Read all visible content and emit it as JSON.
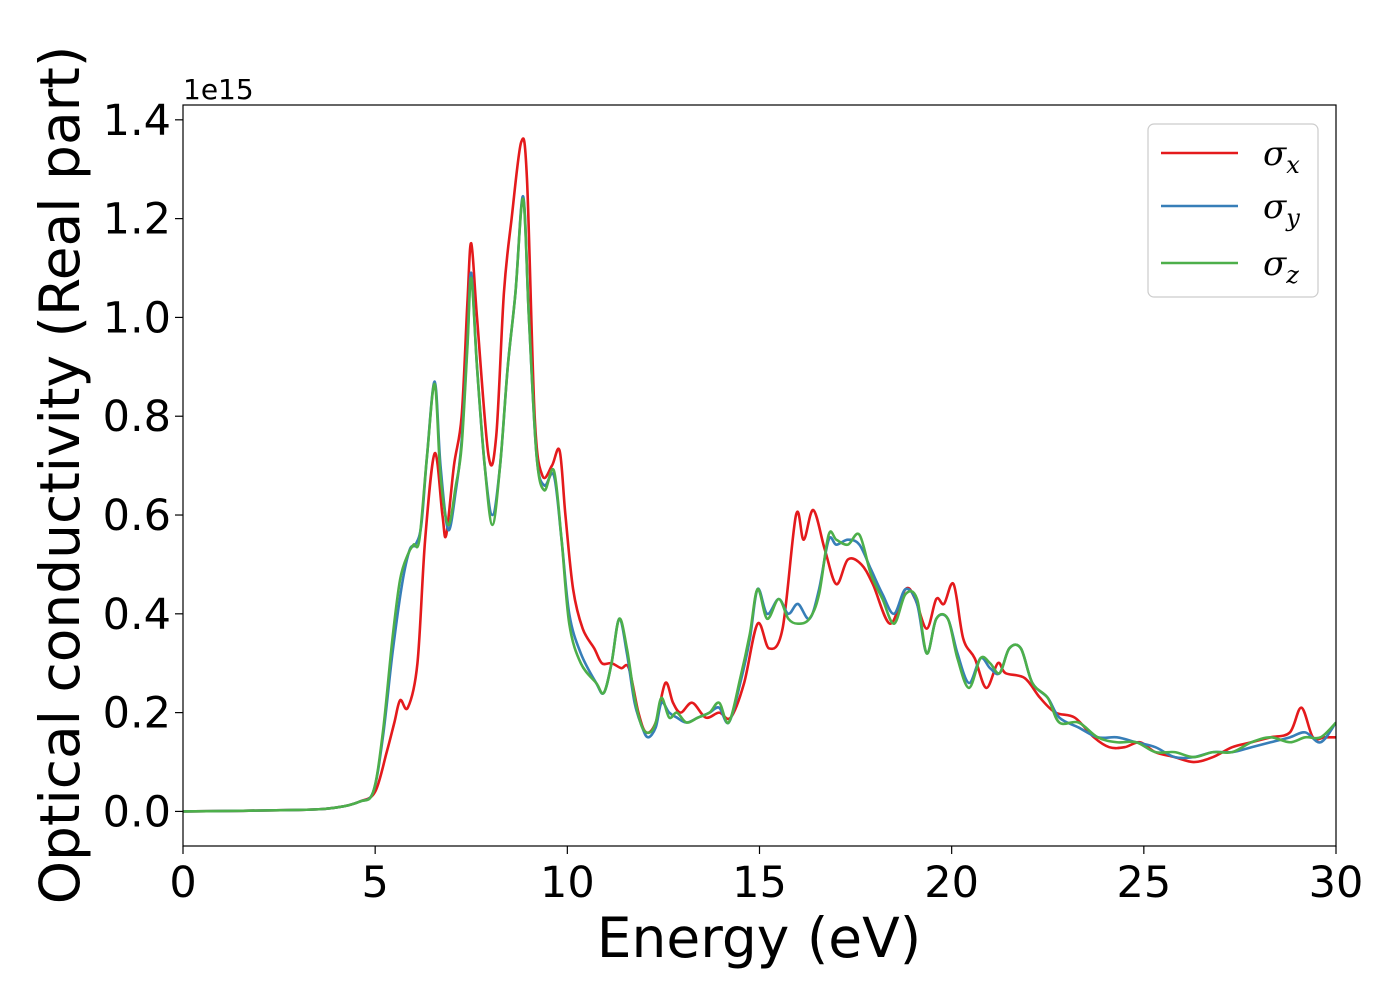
{
  "chart_data": {
    "type": "line",
    "title": "",
    "xlabel": "Energy (eV)",
    "ylabel": "Optical conductivity (Real part)",
    "y_offset_text": "1e15",
    "y_scale": 1000000000000000.0,
    "xlim": [
      0,
      30
    ],
    "ylim": [
      -0.07,
      1.43
    ],
    "xticks": [
      0,
      5,
      10,
      15,
      20,
      25,
      30
    ],
    "xtick_labels": [
      "0",
      "5",
      "10",
      "15",
      "20",
      "25",
      "30"
    ],
    "yticks": [
      0.0,
      0.2,
      0.4,
      0.6,
      0.8,
      1.0,
      1.2,
      1.4
    ],
    "ytick_labels": [
      "0.0",
      "0.2",
      "0.4",
      "0.6",
      "0.8",
      "1.0",
      "1.2",
      "1.4"
    ],
    "grid": false,
    "legend_position": "top-right",
    "series": [
      {
        "name": "σx",
        "symbol": "σ",
        "subscript": "x",
        "color": "#e41a1c",
        "points": [
          [
            0,
            0
          ],
          [
            3,
            0.003
          ],
          [
            4,
            0.008
          ],
          [
            4.6,
            0.02
          ],
          [
            5,
            0.04
          ],
          [
            5.3,
            0.12
          ],
          [
            5.5,
            0.18
          ],
          [
            5.65,
            0.225
          ],
          [
            5.85,
            0.21
          ],
          [
            6.1,
            0.3
          ],
          [
            6.3,
            0.55
          ],
          [
            6.55,
            0.725
          ],
          [
            6.75,
            0.6
          ],
          [
            6.85,
            0.56
          ],
          [
            7.05,
            0.7
          ],
          [
            7.25,
            0.8
          ],
          [
            7.4,
            1.03
          ],
          [
            7.5,
            1.15
          ],
          [
            7.65,
            1.0
          ],
          [
            7.95,
            0.72
          ],
          [
            8.15,
            0.76
          ],
          [
            8.35,
            1.05
          ],
          [
            8.55,
            1.2
          ],
          [
            8.8,
            1.355
          ],
          [
            8.95,
            1.28
          ],
          [
            9.15,
            0.8
          ],
          [
            9.35,
            0.68
          ],
          [
            9.6,
            0.7
          ],
          [
            9.8,
            0.73
          ],
          [
            9.95,
            0.6
          ],
          [
            10.15,
            0.45
          ],
          [
            10.4,
            0.37
          ],
          [
            10.7,
            0.33
          ],
          [
            10.9,
            0.3
          ],
          [
            11.15,
            0.3
          ],
          [
            11.4,
            0.29
          ],
          [
            11.6,
            0.29
          ],
          [
            11.85,
            0.2
          ],
          [
            12.05,
            0.16
          ],
          [
            12.3,
            0.18
          ],
          [
            12.55,
            0.26
          ],
          [
            12.75,
            0.22
          ],
          [
            12.95,
            0.2
          ],
          [
            13.25,
            0.22
          ],
          [
            13.6,
            0.19
          ],
          [
            13.95,
            0.2
          ],
          [
            14.25,
            0.19
          ],
          [
            14.6,
            0.26
          ],
          [
            14.95,
            0.38
          ],
          [
            15.25,
            0.33
          ],
          [
            15.6,
            0.37
          ],
          [
            15.95,
            0.6
          ],
          [
            16.15,
            0.55
          ],
          [
            16.4,
            0.61
          ],
          [
            16.7,
            0.53
          ],
          [
            17.0,
            0.46
          ],
          [
            17.3,
            0.51
          ],
          [
            17.65,
            0.5
          ],
          [
            17.95,
            0.46
          ],
          [
            18.4,
            0.38
          ],
          [
            18.8,
            0.45
          ],
          [
            19.05,
            0.43
          ],
          [
            19.35,
            0.37
          ],
          [
            19.6,
            0.43
          ],
          [
            19.8,
            0.42
          ],
          [
            20.05,
            0.46
          ],
          [
            20.3,
            0.35
          ],
          [
            20.6,
            0.31
          ],
          [
            20.9,
            0.25
          ],
          [
            21.2,
            0.3
          ],
          [
            21.4,
            0.28
          ],
          [
            21.9,
            0.27
          ],
          [
            22.3,
            0.23
          ],
          [
            22.7,
            0.2
          ],
          [
            23.2,
            0.19
          ],
          [
            23.7,
            0.15
          ],
          [
            24.1,
            0.13
          ],
          [
            24.5,
            0.13
          ],
          [
            24.9,
            0.14
          ],
          [
            25.3,
            0.12
          ],
          [
            25.8,
            0.11
          ],
          [
            26.3,
            0.1
          ],
          [
            26.8,
            0.11
          ],
          [
            27.3,
            0.13
          ],
          [
            27.8,
            0.14
          ],
          [
            28.3,
            0.15
          ],
          [
            28.8,
            0.16
          ],
          [
            29.1,
            0.21
          ],
          [
            29.4,
            0.15
          ],
          [
            29.7,
            0.15
          ],
          [
            30,
            0.15
          ]
        ]
      },
      {
        "name": "σy",
        "symbol": "σ",
        "subscript": "y",
        "color": "#377eb8",
        "points": [
          [
            0,
            0
          ],
          [
            3,
            0.003
          ],
          [
            4,
            0.008
          ],
          [
            4.6,
            0.02
          ],
          [
            4.95,
            0.04
          ],
          [
            5.2,
            0.15
          ],
          [
            5.45,
            0.32
          ],
          [
            5.7,
            0.46
          ],
          [
            5.9,
            0.53
          ],
          [
            6.05,
            0.54
          ],
          [
            6.2,
            0.58
          ],
          [
            6.35,
            0.72
          ],
          [
            6.55,
            0.87
          ],
          [
            6.7,
            0.7
          ],
          [
            6.9,
            0.57
          ],
          [
            7.1,
            0.65
          ],
          [
            7.25,
            0.75
          ],
          [
            7.4,
            0.95
          ],
          [
            7.5,
            1.09
          ],
          [
            7.65,
            0.9
          ],
          [
            7.85,
            0.7
          ],
          [
            8.05,
            0.6
          ],
          [
            8.25,
            0.7
          ],
          [
            8.45,
            0.9
          ],
          [
            8.65,
            1.05
          ],
          [
            8.85,
            1.245
          ],
          [
            9.0,
            1.0
          ],
          [
            9.2,
            0.72
          ],
          [
            9.4,
            0.66
          ],
          [
            9.65,
            0.68
          ],
          [
            9.85,
            0.55
          ],
          [
            10.05,
            0.4
          ],
          [
            10.35,
            0.32
          ],
          [
            10.75,
            0.26
          ],
          [
            10.95,
            0.24
          ],
          [
            11.15,
            0.3
          ],
          [
            11.35,
            0.39
          ],
          [
            11.55,
            0.32
          ],
          [
            11.75,
            0.22
          ],
          [
            11.95,
            0.17
          ],
          [
            12.1,
            0.15
          ],
          [
            12.3,
            0.17
          ],
          [
            12.45,
            0.22
          ],
          [
            12.65,
            0.2
          ],
          [
            12.85,
            0.19
          ],
          [
            13.1,
            0.18
          ],
          [
            13.4,
            0.19
          ],
          [
            13.7,
            0.2
          ],
          [
            13.95,
            0.21
          ],
          [
            14.2,
            0.18
          ],
          [
            14.5,
            0.26
          ],
          [
            14.75,
            0.35
          ],
          [
            14.95,
            0.45
          ],
          [
            15.2,
            0.4
          ],
          [
            15.5,
            0.43
          ],
          [
            15.75,
            0.4
          ],
          [
            16.0,
            0.42
          ],
          [
            16.3,
            0.39
          ],
          [
            16.55,
            0.45
          ],
          [
            16.8,
            0.55
          ],
          [
            17.0,
            0.54
          ],
          [
            17.3,
            0.55
          ],
          [
            17.6,
            0.54
          ],
          [
            17.9,
            0.49
          ],
          [
            18.2,
            0.44
          ],
          [
            18.5,
            0.4
          ],
          [
            18.8,
            0.45
          ],
          [
            19.1,
            0.42
          ],
          [
            19.35,
            0.32
          ],
          [
            19.6,
            0.39
          ],
          [
            19.9,
            0.39
          ],
          [
            20.15,
            0.32
          ],
          [
            20.45,
            0.26
          ],
          [
            20.75,
            0.31
          ],
          [
            21.0,
            0.29
          ],
          [
            21.25,
            0.28
          ],
          [
            21.5,
            0.33
          ],
          [
            21.8,
            0.33
          ],
          [
            22.1,
            0.26
          ],
          [
            22.5,
            0.23
          ],
          [
            22.8,
            0.19
          ],
          [
            23.3,
            0.17
          ],
          [
            23.8,
            0.15
          ],
          [
            24.3,
            0.15
          ],
          [
            24.8,
            0.14
          ],
          [
            25.3,
            0.13
          ],
          [
            25.8,
            0.11
          ],
          [
            26.3,
            0.11
          ],
          [
            26.8,
            0.12
          ],
          [
            27.3,
            0.12
          ],
          [
            27.8,
            0.13
          ],
          [
            28.3,
            0.14
          ],
          [
            28.8,
            0.15
          ],
          [
            29.2,
            0.16
          ],
          [
            29.6,
            0.14
          ],
          [
            30,
            0.18
          ]
        ]
      },
      {
        "name": "σz",
        "symbol": "σ",
        "subscript": "z",
        "color": "#4daf4a",
        "points": [
          [
            0,
            0
          ],
          [
            3,
            0.003
          ],
          [
            4,
            0.008
          ],
          [
            4.6,
            0.02
          ],
          [
            4.95,
            0.04
          ],
          [
            5.2,
            0.16
          ],
          [
            5.45,
            0.35
          ],
          [
            5.65,
            0.47
          ],
          [
            5.85,
            0.52
          ],
          [
            6.0,
            0.54
          ],
          [
            6.15,
            0.55
          ],
          [
            6.35,
            0.72
          ],
          [
            6.55,
            0.865
          ],
          [
            6.7,
            0.68
          ],
          [
            6.9,
            0.58
          ],
          [
            7.1,
            0.66
          ],
          [
            7.25,
            0.74
          ],
          [
            7.4,
            0.94
          ],
          [
            7.5,
            1.08
          ],
          [
            7.65,
            0.9
          ],
          [
            7.85,
            0.7
          ],
          [
            8.05,
            0.58
          ],
          [
            8.25,
            0.7
          ],
          [
            8.45,
            0.9
          ],
          [
            8.65,
            1.05
          ],
          [
            8.85,
            1.24
          ],
          [
            9.0,
            1.0
          ],
          [
            9.2,
            0.72
          ],
          [
            9.4,
            0.65
          ],
          [
            9.65,
            0.69
          ],
          [
            9.85,
            0.55
          ],
          [
            10.05,
            0.38
          ],
          [
            10.35,
            0.3
          ],
          [
            10.75,
            0.26
          ],
          [
            10.95,
            0.24
          ],
          [
            11.15,
            0.3
          ],
          [
            11.35,
            0.39
          ],
          [
            11.55,
            0.33
          ],
          [
            11.75,
            0.23
          ],
          [
            11.95,
            0.17
          ],
          [
            12.15,
            0.16
          ],
          [
            12.3,
            0.18
          ],
          [
            12.45,
            0.23
          ],
          [
            12.65,
            0.19
          ],
          [
            12.85,
            0.2
          ],
          [
            13.1,
            0.18
          ],
          [
            13.4,
            0.19
          ],
          [
            13.7,
            0.2
          ],
          [
            13.95,
            0.22
          ],
          [
            14.2,
            0.18
          ],
          [
            14.5,
            0.27
          ],
          [
            14.75,
            0.36
          ],
          [
            14.95,
            0.45
          ],
          [
            15.2,
            0.39
          ],
          [
            15.5,
            0.43
          ],
          [
            15.75,
            0.39
          ],
          [
            16.0,
            0.38
          ],
          [
            16.3,
            0.39
          ],
          [
            16.55,
            0.44
          ],
          [
            16.8,
            0.56
          ],
          [
            17.0,
            0.55
          ],
          [
            17.3,
            0.54
          ],
          [
            17.6,
            0.56
          ],
          [
            17.9,
            0.48
          ],
          [
            18.2,
            0.43
          ],
          [
            18.5,
            0.38
          ],
          [
            18.8,
            0.44
          ],
          [
            19.1,
            0.43
          ],
          [
            19.35,
            0.32
          ],
          [
            19.6,
            0.39
          ],
          [
            19.9,
            0.39
          ],
          [
            20.15,
            0.31
          ],
          [
            20.45,
            0.25
          ],
          [
            20.75,
            0.31
          ],
          [
            21.0,
            0.3
          ],
          [
            21.25,
            0.28
          ],
          [
            21.5,
            0.33
          ],
          [
            21.8,
            0.33
          ],
          [
            22.1,
            0.26
          ],
          [
            22.5,
            0.23
          ],
          [
            22.8,
            0.18
          ],
          [
            23.3,
            0.18
          ],
          [
            23.8,
            0.15
          ],
          [
            24.3,
            0.14
          ],
          [
            24.8,
            0.14
          ],
          [
            25.3,
            0.12
          ],
          [
            25.8,
            0.12
          ],
          [
            26.3,
            0.11
          ],
          [
            26.8,
            0.12
          ],
          [
            27.3,
            0.12
          ],
          [
            27.8,
            0.14
          ],
          [
            28.3,
            0.15
          ],
          [
            28.8,
            0.14
          ],
          [
            29.2,
            0.15
          ],
          [
            29.6,
            0.15
          ],
          [
            30,
            0.18
          ]
        ]
      }
    ]
  }
}
